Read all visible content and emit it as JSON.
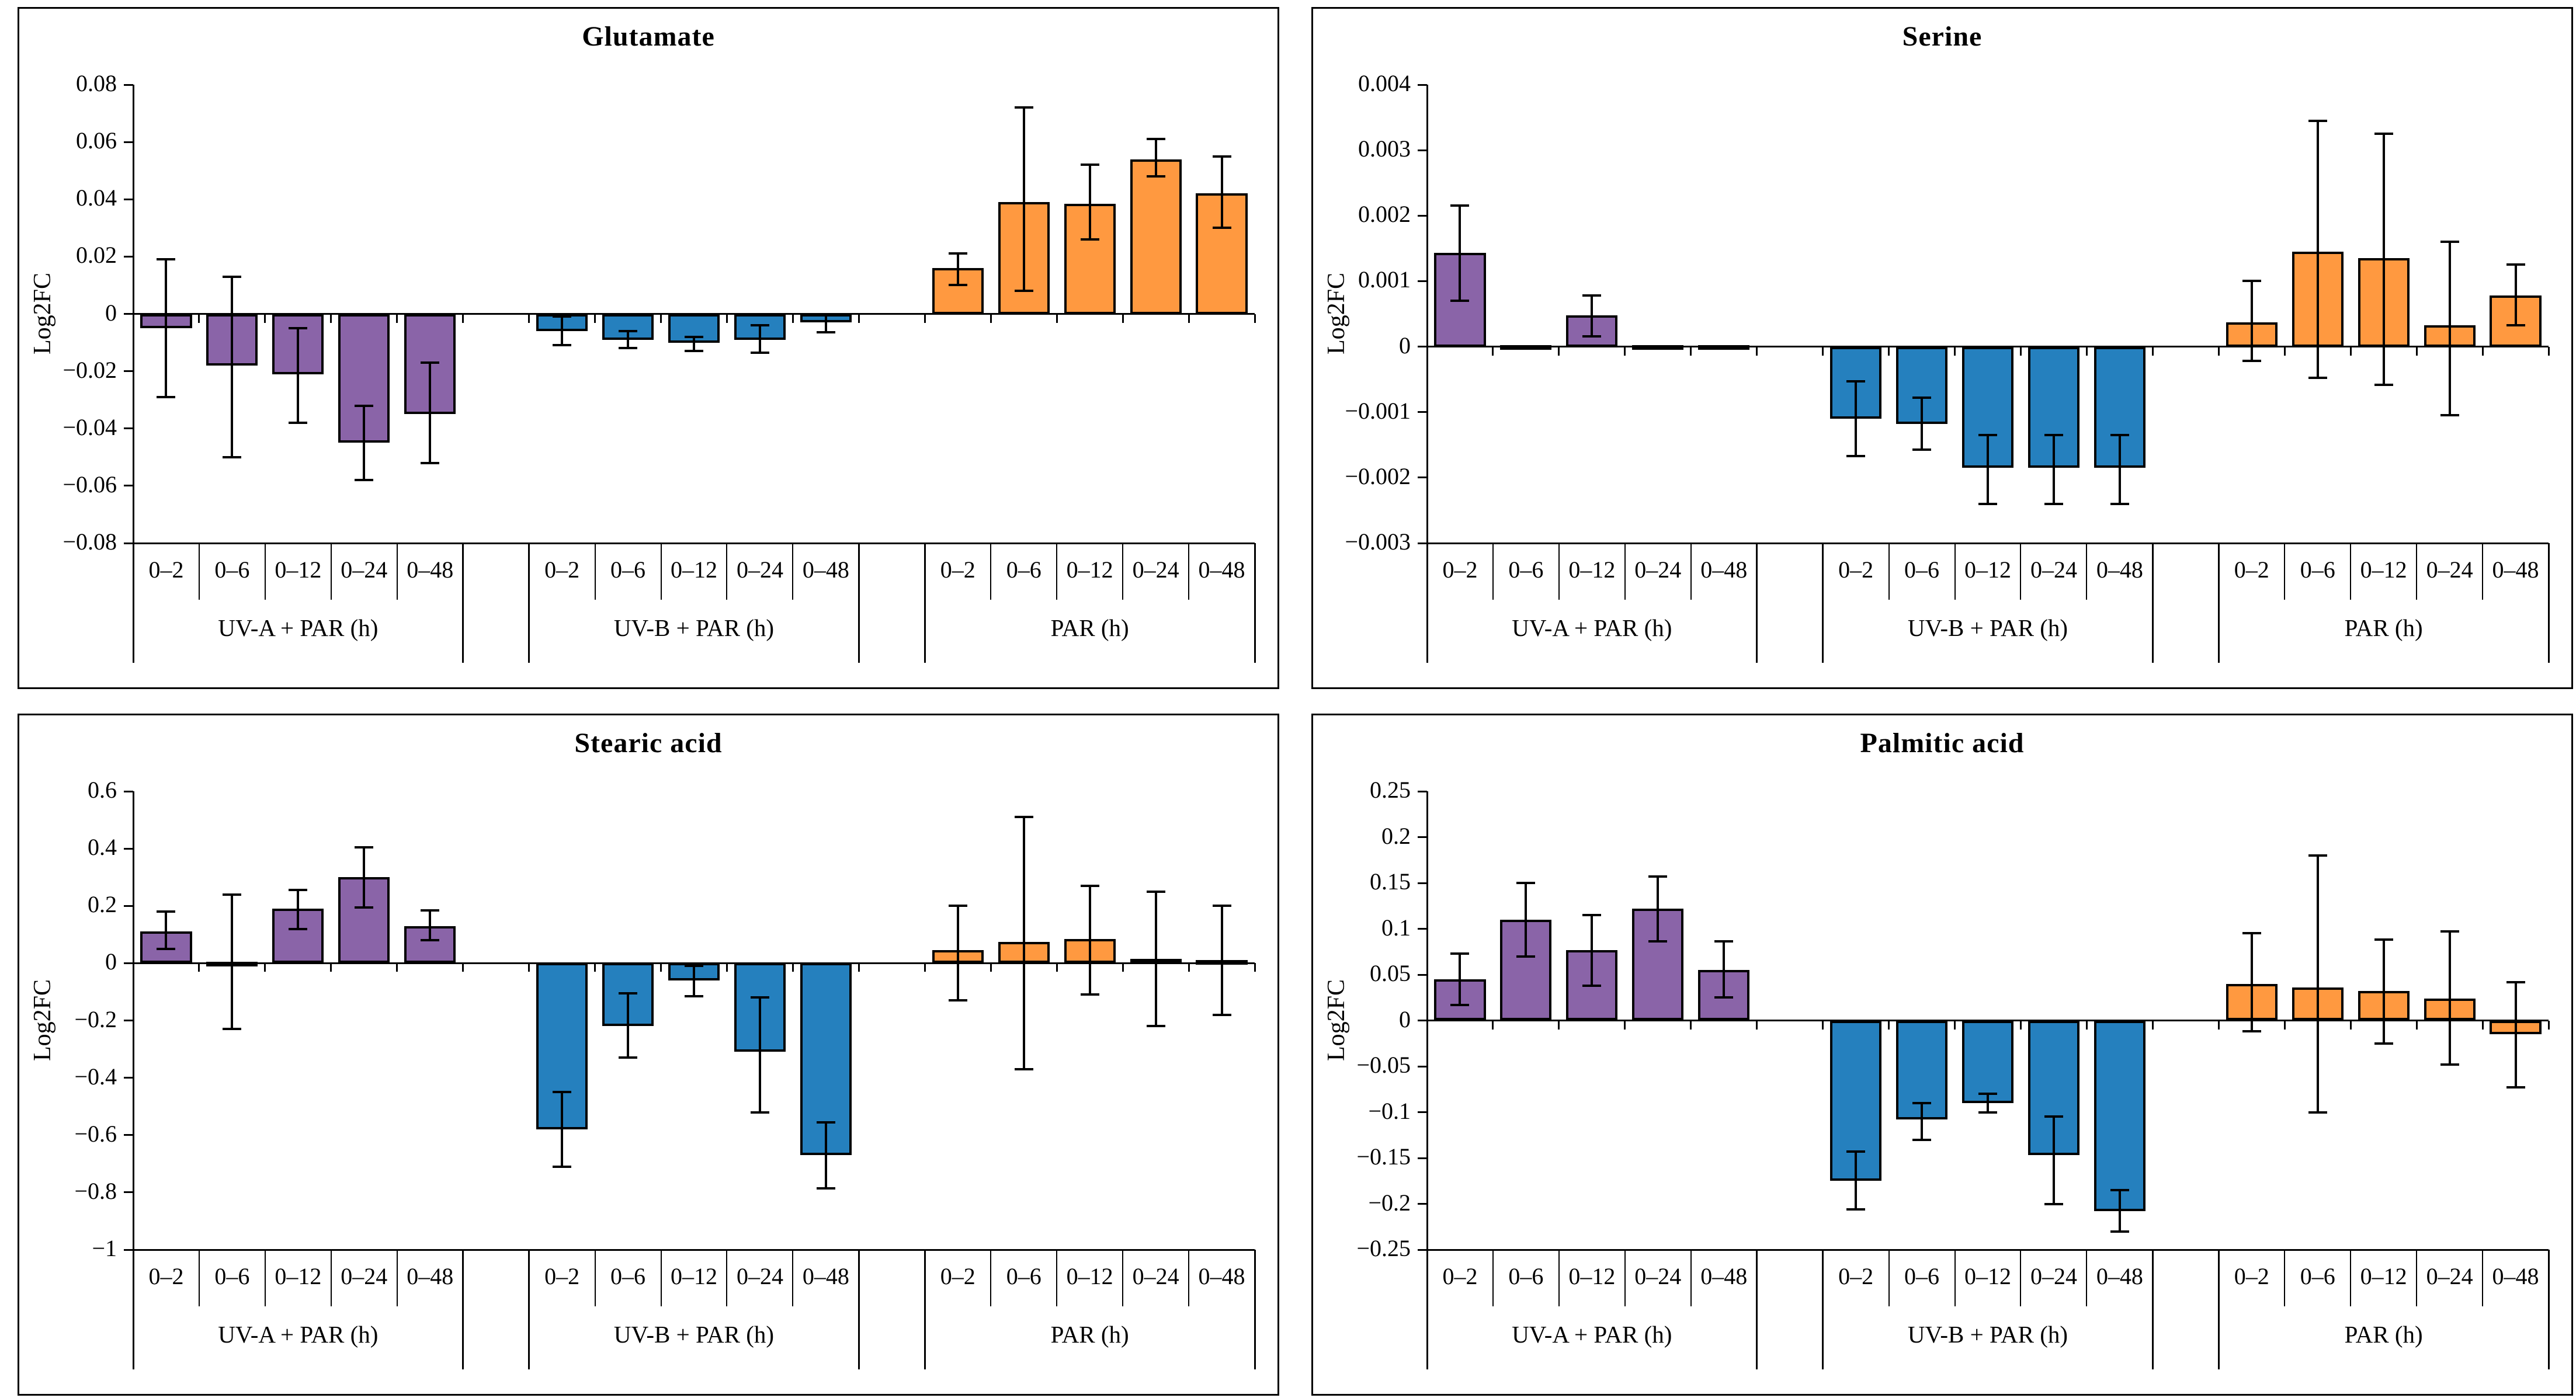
{
  "figure": {
    "background": "#ffffff",
    "colors": {
      "uva": "#8A64A8",
      "uvb": "#2580BE",
      "par": "#FF9940",
      "axis": "#000000"
    },
    "group_labels": [
      "UV-A + PAR (h)",
      "UV-B + PAR (h)",
      "PAR (h)"
    ],
    "time_labels": [
      "0–2",
      "0–6",
      "0–12",
      "0–24",
      "0–48"
    ]
  },
  "chart_data": [
    {
      "type": "bar",
      "title": "Glutamate",
      "ylabel": "Log2FC",
      "ylim": [
        -0.08,
        0.08
      ],
      "grid": false,
      "ytick_values": [
        0.08,
        0.06,
        0.04,
        0.02,
        0,
        -0.02,
        -0.04,
        -0.06,
        -0.08
      ],
      "ytick_labels": [
        "0.08",
        "0.06",
        "0.04",
        "0.02",
        "0",
        "−0.02",
        "−0.04",
        "−0.06",
        "−0.08"
      ],
      "categories": [
        "0–2",
        "0–6",
        "0–12",
        "0–24",
        "0–48"
      ],
      "series": [
        {
          "name": "UV-A + PAR (h)",
          "color": "uva",
          "values": [
            -0.005,
            -0.018,
            -0.021,
            -0.045,
            -0.035
          ],
          "err_hi": [
            0.019,
            0.013,
            -0.005,
            -0.032,
            -0.017
          ],
          "err_lo": [
            -0.029,
            -0.05,
            -0.038,
            -0.058,
            -0.052
          ]
        },
        {
          "name": "UV-B + PAR (h)",
          "color": "uvb",
          "values": [
            -0.006,
            -0.009,
            -0.01,
            -0.009,
            -0.003
          ],
          "err_hi": [
            -0.001,
            -0.006,
            -0.008,
            -0.004,
            0.0
          ],
          "err_lo": [
            -0.011,
            -0.012,
            -0.013,
            -0.0135,
            -0.0065
          ]
        },
        {
          "name": "PAR (h)",
          "color": "par",
          "values": [
            0.016,
            0.039,
            0.0385,
            0.054,
            0.042
          ],
          "err_hi": [
            0.021,
            0.072,
            0.052,
            0.061,
            0.055
          ],
          "err_lo": [
            0.01,
            0.008,
            0.026,
            0.048,
            0.03
          ]
        }
      ]
    },
    {
      "type": "bar",
      "title": "Serine",
      "ylabel": "Log2FC",
      "ylim": [
        -0.003,
        0.004
      ],
      "grid": false,
      "ytick_values": [
        0.004,
        0.003,
        0.002,
        0.001,
        0,
        -0.001,
        -0.002,
        -0.003
      ],
      "ytick_labels": [
        "0.004",
        "0.003",
        "0.002",
        "0.001",
        "0",
        "−0.001",
        "−0.002",
        "−0.003"
      ],
      "categories": [
        "0–2",
        "0–6",
        "0–12",
        "0–24",
        "0–48"
      ],
      "series": [
        {
          "name": "UV-A + PAR (h)",
          "color": "uva",
          "values": [
            0.00143,
            2e-05,
            0.00048,
            2e-05,
            2e-05
          ],
          "err_hi": [
            0.00215,
            null,
            0.00078,
            null,
            null
          ],
          "err_lo": [
            0.0007,
            null,
            0.00016,
            null,
            null
          ]
        },
        {
          "name": "UV-B + PAR (h)",
          "color": "uvb",
          "values": [
            -0.0011,
            -0.00118,
            -0.00185,
            -0.00185,
            -0.00185
          ],
          "err_hi": [
            -0.00053,
            -0.00078,
            -0.00135,
            -0.00135,
            -0.00135
          ],
          "err_lo": [
            -0.00167,
            -0.00157,
            -0.0024,
            -0.0024,
            -0.0024
          ]
        },
        {
          "name": "PAR (h)",
          "color": "par",
          "values": [
            0.00037,
            0.00145,
            0.00135,
            0.00033,
            0.00078
          ],
          "err_hi": [
            0.001,
            0.00345,
            0.00325,
            0.0016,
            0.00125
          ],
          "err_lo": [
            -0.00022,
            -0.00048,
            -0.00058,
            -0.00105,
            0.00033
          ]
        }
      ]
    },
    {
      "type": "bar",
      "title": "Stearic acid",
      "ylabel": "Log2FC",
      "ylim": [
        -1,
        0.6
      ],
      "grid": false,
      "ytick_values": [
        0.6,
        0.4,
        0.2,
        0,
        -0.2,
        -0.4,
        -0.6,
        -0.8,
        -1
      ],
      "ytick_labels": [
        "0.6",
        "0.4",
        "0.2",
        "0",
        "−0.2",
        "−0.4",
        "−0.6",
        "−0.8",
        "−1"
      ],
      "categories": [
        "0–2",
        "0–6",
        "0–12",
        "0–24",
        "0–48"
      ],
      "series": [
        {
          "name": "UV-A + PAR (h)",
          "color": "uva",
          "values": [
            0.11,
            0.005,
            0.19,
            0.3,
            0.13
          ],
          "err_hi": [
            0.18,
            0.24,
            0.255,
            0.405,
            0.185
          ],
          "err_lo": [
            0.05,
            -0.23,
            0.12,
            0.195,
            0.08
          ]
        },
        {
          "name": "UV-B + PAR (h)",
          "color": "uvb",
          "values": [
            -0.58,
            -0.22,
            -0.06,
            -0.31,
            -0.67
          ],
          "err_hi": [
            -0.45,
            -0.105,
            -0.01,
            -0.12,
            -0.555
          ],
          "err_lo": [
            -0.71,
            -0.33,
            -0.115,
            -0.52,
            -0.785
          ]
        },
        {
          "name": "PAR (h)",
          "color": "par",
          "values": [
            0.045,
            0.075,
            0.085,
            0.015,
            0.01
          ],
          "err_hi": [
            0.2,
            0.51,
            0.27,
            0.25,
            0.2
          ],
          "err_lo": [
            -0.13,
            -0.37,
            -0.11,
            -0.22,
            -0.18
          ]
        }
      ]
    },
    {
      "type": "bar",
      "title": "Palmitic acid",
      "ylabel": "Log2FC",
      "ylim": [
        -0.25,
        0.25
      ],
      "grid": false,
      "ytick_values": [
        0.25,
        0.2,
        0.15,
        0.1,
        0.05,
        0,
        -0.05,
        -0.1,
        -0.15,
        -0.2,
        -0.25
      ],
      "ytick_labels": [
        "0.25",
        "0.2",
        "0.15",
        "0.1",
        "0.05",
        "0",
        "−0.05",
        "−0.1",
        "−0.15",
        "−0.2",
        "−0.25"
      ],
      "categories": [
        "0–2",
        "0–6",
        "0–12",
        "0–24",
        "0–48"
      ],
      "series": [
        {
          "name": "UV-A + PAR (h)",
          "color": "uva",
          "values": [
            0.045,
            0.11,
            0.077,
            0.122,
            0.055
          ],
          "err_hi": [
            0.073,
            0.15,
            0.115,
            0.157,
            0.086
          ],
          "err_lo": [
            0.017,
            0.07,
            0.038,
            0.086,
            0.025
          ]
        },
        {
          "name": "UV-B + PAR (h)",
          "color": "uvb",
          "values": [
            -0.175,
            -0.108,
            -0.09,
            -0.147,
            -0.208
          ],
          "err_hi": [
            -0.143,
            -0.09,
            -0.08,
            -0.105,
            -0.185
          ],
          "err_lo": [
            -0.206,
            -0.13,
            -0.1,
            -0.2,
            -0.23
          ]
        },
        {
          "name": "PAR (h)",
          "color": "par",
          "values": [
            0.04,
            0.036,
            0.032,
            0.024,
            -0.015
          ],
          "err_hi": [
            0.095,
            0.18,
            0.088,
            0.097,
            0.042
          ],
          "err_lo": [
            -0.012,
            -0.1,
            -0.025,
            -0.048,
            -0.073
          ]
        }
      ]
    }
  ]
}
